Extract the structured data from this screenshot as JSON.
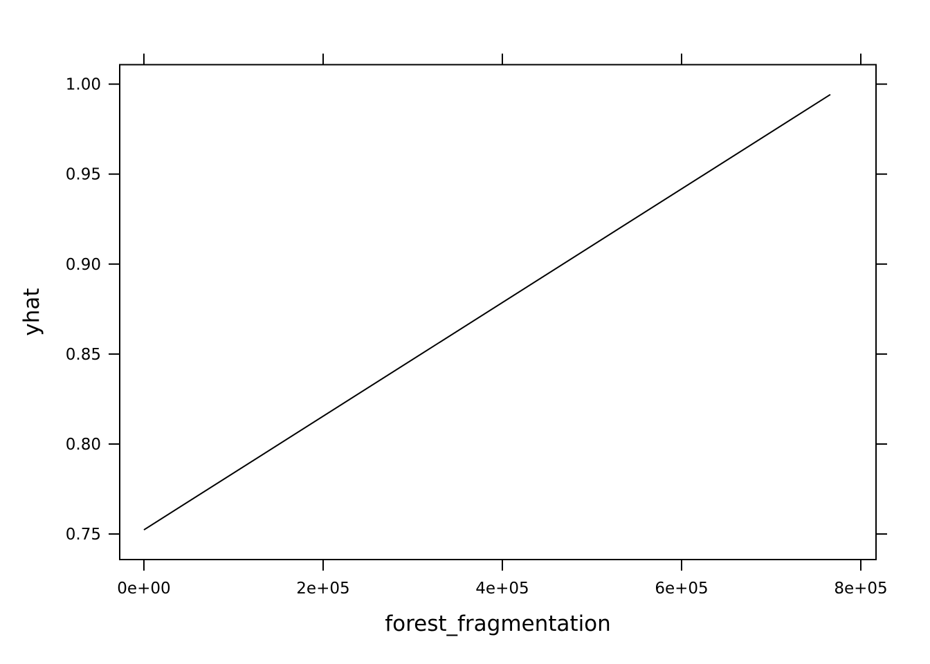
{
  "chart_data": {
    "type": "line",
    "title": "",
    "xlabel": "forest_fragmentation",
    "ylabel": "yhat",
    "xlim": [
      -27000,
      817000
    ],
    "ylim": [
      0.7358,
      1.0108
    ],
    "x_ticks": [
      0,
      200000,
      400000,
      600000,
      800000
    ],
    "x_tick_labels": [
      "0e+00",
      "2e+05",
      "4e+05",
      "6e+05",
      "8e+05"
    ],
    "y_ticks": [
      0.75,
      0.8,
      0.85,
      0.9,
      0.95,
      1.0
    ],
    "y_tick_labels": [
      "0.75",
      "0.80",
      "0.85",
      "0.90",
      "0.95",
      "1.00"
    ],
    "grid": false,
    "series": [
      {
        "name": "yhat",
        "color": "#000000",
        "x": [
          0,
          766000
        ],
        "y": [
          0.7523,
          0.9942
        ]
      }
    ]
  }
}
